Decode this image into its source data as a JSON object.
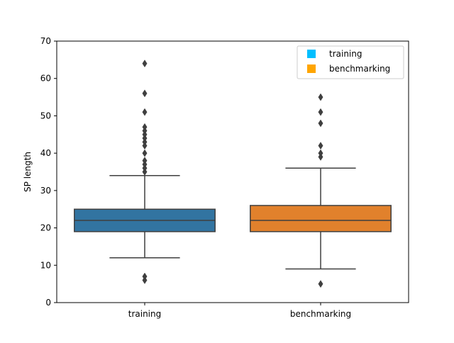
{
  "chart_data": {
    "type": "box",
    "ylabel": "SP length",
    "xlabel": "",
    "ylim": [
      0,
      70
    ],
    "yticks": [
      0,
      10,
      20,
      30,
      40,
      50,
      60,
      70
    ],
    "categories": [
      "training",
      "benchmarking"
    ],
    "series": [
      {
        "name": "training",
        "color": "#3274a1",
        "legend_color": "#00bfff",
        "whisker_low": 12,
        "q1": 19,
        "median": 22,
        "q3": 25,
        "whisker_high": 34,
        "outliers": [
          6,
          7,
          35,
          36,
          37,
          38,
          40,
          42,
          43,
          44,
          45,
          46,
          47,
          51,
          56,
          64
        ]
      },
      {
        "name": "benchmarking",
        "color": "#e1812c",
        "legend_color": "#ffa500",
        "whisker_low": 9,
        "q1": 19,
        "median": 22,
        "q3": 26,
        "whisker_high": 36,
        "outliers": [
          5,
          39,
          40,
          42,
          48,
          51,
          55
        ]
      }
    ],
    "legend": {
      "placement": "top-right",
      "entries": [
        "training",
        "benchmarking"
      ]
    },
    "grid": false
  }
}
